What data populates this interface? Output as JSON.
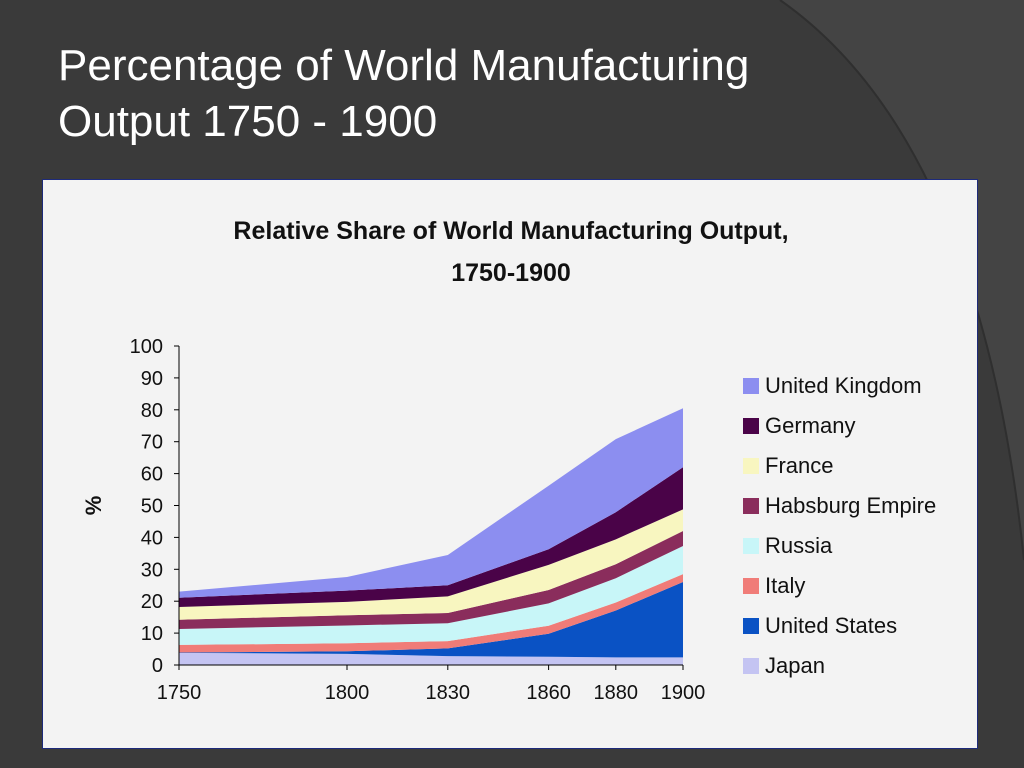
{
  "slide": {
    "title_line1": "Percentage of World Manufacturing",
    "title_line2": "Output 1750 - 1900"
  },
  "chart_data": {
    "type": "area",
    "stacked": true,
    "title_line1": "Relative Share of World Manufacturing Output,",
    "title_line2": "1750-1900",
    "ylabel": "%",
    "xlabel": "",
    "ylim": [
      0,
      100
    ],
    "yticks": [
      0,
      10,
      20,
      30,
      40,
      50,
      60,
      70,
      80,
      90,
      100
    ],
    "categories": [
      "1750",
      "1800",
      "1830",
      "1860",
      "1880",
      "1900"
    ],
    "legend_position": "right",
    "series": [
      {
        "name": "Japan",
        "color": "#c4c4f2",
        "values": [
          3.8,
          3.5,
          2.8,
          2.6,
          2.4,
          2.4
        ]
      },
      {
        "name": "United States",
        "color": "#0a52c4",
        "values": [
          0.1,
          0.8,
          2.4,
          7.2,
          14.7,
          23.6
        ]
      },
      {
        "name": "Italy",
        "color": "#f07c78",
        "values": [
          2.4,
          2.5,
          2.3,
          2.5,
          2.5,
          2.5
        ]
      },
      {
        "name": "Russia",
        "color": "#c8f6f8",
        "values": [
          5.0,
          5.6,
          5.6,
          7.0,
          7.6,
          8.8
        ]
      },
      {
        "name": "Habsburg Empire",
        "color": "#8a2d5c",
        "values": [
          2.9,
          3.2,
          3.2,
          4.2,
          4.4,
          4.7
        ]
      },
      {
        "name": "France",
        "color": "#f8f6c0",
        "values": [
          4.0,
          4.2,
          5.2,
          7.9,
          7.8,
          6.8
        ]
      },
      {
        "name": "Germany",
        "color": "#4a0348",
        "values": [
          2.9,
          3.5,
          3.5,
          4.9,
          8.5,
          13.2
        ]
      },
      {
        "name": "United Kingdom",
        "color": "#8c8ef0",
        "values": [
          1.9,
          4.3,
          9.5,
          19.9,
          22.9,
          18.5
        ]
      }
    ],
    "legend_order": [
      "United Kingdom",
      "Germany",
      "France",
      "Habsburg Empire",
      "Russia",
      "Italy",
      "United States",
      "Japan"
    ]
  }
}
